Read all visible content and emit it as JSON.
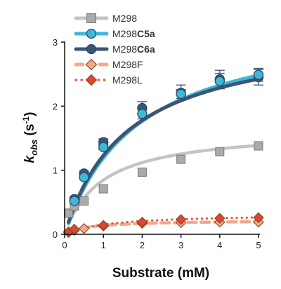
{
  "chart_data": {
    "type": "scatter",
    "xlabel": "Substrate (mM)",
    "ylabel": {
      "base": "k",
      "sub": "obs",
      "unit_open": " (s",
      "sup": "-1",
      "unit_close": ")"
    },
    "xlim": [
      0,
      5
    ],
    "ylim": [
      0,
      3
    ],
    "xticks": [
      "0",
      "1",
      "2",
      "3",
      "4",
      "5"
    ],
    "yticks": [
      "0",
      "1",
      "2",
      "3"
    ],
    "grid": false,
    "legend_position": "top-left",
    "series": [
      {
        "name": "M298",
        "name_plain": "M298",
        "name_bold": "",
        "marker": "square",
        "color": "#aaaaaa",
        "line_color": "#c4c4c4",
        "line_style": "solid",
        "x": [
          0.1,
          0.25,
          0.5,
          1,
          2,
          3,
          4,
          5
        ],
        "y": [
          0.33,
          0.44,
          0.52,
          0.71,
          0.97,
          1.17,
          1.29,
          1.38
        ],
        "fit": {
          "vmax": 1.65,
          "km": 0.95
        }
      },
      {
        "name": "M298C5a",
        "name_plain": "M298",
        "name_bold": "C5a",
        "marker": "circle",
        "color": "#3fb8d9",
        "line_color": "#3fb8d9",
        "line_style": "solid",
        "x": [
          0.25,
          0.5,
          1,
          2,
          3,
          4,
          5
        ],
        "y": [
          0.52,
          0.89,
          1.36,
          1.88,
          2.19,
          2.39,
          2.49
        ],
        "err": [
          0.02,
          0.03,
          0.04,
          0.08,
          0.07,
          0.12,
          0.1
        ],
        "fit": {
          "vmax": 3.4,
          "km": 1.85
        }
      },
      {
        "name": "M298C6a",
        "name_plain": "M298",
        "name_bold": "C6a",
        "marker": "circle",
        "color": "#3b5575",
        "line_color": "#3b5575",
        "line_style": "solid",
        "x": [
          0.25,
          0.5,
          1,
          2,
          3,
          4,
          5
        ],
        "y": [
          0.55,
          0.95,
          1.44,
          1.97,
          2.21,
          2.42,
          2.45
        ],
        "err": [
          0.03,
          0.04,
          0.05,
          0.1,
          0.12,
          0.14,
          0.12
        ],
        "fit": {
          "vmax": 3.2,
          "km": 1.6
        }
      },
      {
        "name": "M298F",
        "name_plain": "M298F",
        "name_bold": "",
        "marker": "diamond",
        "color": "#f2a989",
        "line_color": "#f2a989",
        "line_style": "dashed",
        "x": [
          0.1,
          0.25,
          0.5,
          1,
          2,
          3,
          4,
          5
        ],
        "y": [
          0.03,
          0.06,
          0.09,
          0.13,
          0.17,
          0.18,
          0.19,
          0.19
        ],
        "fit": {
          "vmax": 0.22,
          "km": 0.6
        }
      },
      {
        "name": "M298L",
        "name_plain": "M298L",
        "name_bold": "",
        "marker": "diamond",
        "color": "#d9492e",
        "line_color": "#e0583c",
        "line_style": "dotted",
        "x": [
          0.1,
          0.25,
          1,
          2,
          3,
          4,
          5
        ],
        "y": [
          0.04,
          0.08,
          0.14,
          0.19,
          0.23,
          0.25,
          0.26
        ],
        "fit": {
          "vmax": 0.32,
          "km": 1.1
        }
      }
    ]
  }
}
